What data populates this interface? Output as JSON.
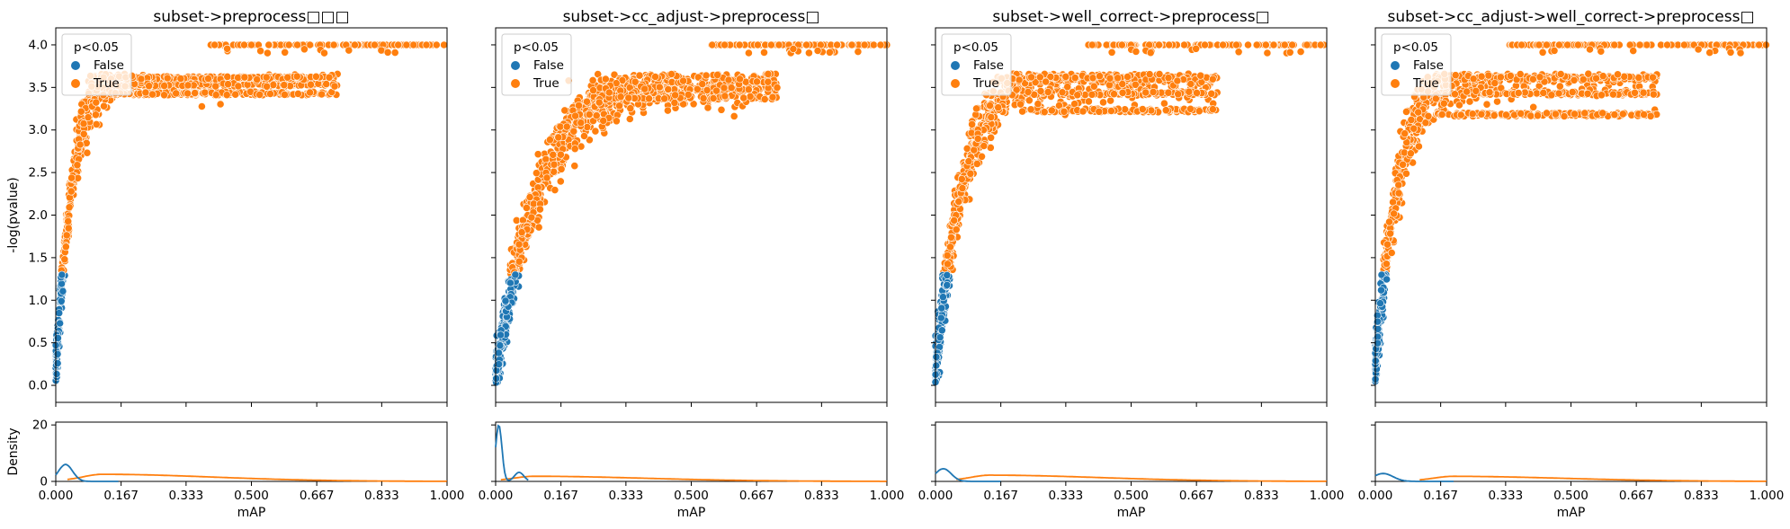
{
  "figure": {
    "legend_title": "p<0.05",
    "legend_entries": [
      {
        "label": "False",
        "color": "#1f77b4"
      },
      {
        "label": "True",
        "color": "#ff7f0e"
      }
    ]
  },
  "chart_data": [
    {
      "type": "scatter",
      "title": "subset->preprocess□□□",
      "ylabel": "-log(pvalue)",
      "xlabel": "mAP",
      "ylim": [
        -0.2,
        4.2
      ],
      "xlim": [
        0,
        1
      ],
      "yticks": [
        "0.0",
        "0.5",
        "1.0",
        "1.5",
        "2.0",
        "2.5",
        "3.0",
        "3.5",
        "4.0"
      ],
      "xticks": [
        "0.000",
        "0.167",
        "0.333",
        "0.500",
        "0.667",
        "0.833",
        "1.000"
      ],
      "threshold_y": 1.301,
      "curve": {
        "k": 20.0,
        "a": 3.7,
        "b": 0.25
      },
      "plateau": [
        3.63,
        3.55,
        3.45
      ],
      "cap_x_range": [
        0.38,
        1.0
      ],
      "density": {
        "ylabel": "Density",
        "ylim": [
          0,
          21
        ],
        "yticks": [
          "0",
          "20"
        ],
        "false_peak": {
          "x": 0.025,
          "y": 6.0,
          "w": 0.018
        },
        "true_peak": {
          "x": 0.12,
          "y": 2.3
        }
      }
    },
    {
      "type": "scatter",
      "title": "subset->cc_adjust->preprocess□",
      "ylabel": "",
      "xlabel": "mAP",
      "ylim": [
        -0.2,
        4.2
      ],
      "xlim": [
        0,
        1
      ],
      "yticks": [
        "0.0",
        "0.5",
        "1.0",
        "1.5",
        "2.0",
        "2.5",
        "3.0",
        "3.5",
        "4.0"
      ],
      "xticks": [
        "0.000",
        "0.167",
        "0.333",
        "0.500",
        "0.667",
        "0.833",
        "1.000"
      ],
      "threshold_y": 1.301,
      "curve": {
        "k": 9.0,
        "a": 3.6,
        "b": 0.05
      },
      "plateau": [
        3.5,
        3.4
      ],
      "cap_x_range": [
        0.55,
        1.0
      ],
      "density": {
        "ylabel": "",
        "ylim": [
          0,
          21
        ],
        "yticks": [
          "0",
          "20"
        ],
        "false_peak": {
          "x": 0.008,
          "y": 20.0,
          "w": 0.008
        },
        "true_peak": {
          "x": 0.1,
          "y": 1.6
        }
      }
    },
    {
      "type": "scatter",
      "title": "subset->well_correct->preprocess□",
      "ylabel": "",
      "xlabel": "mAP",
      "ylim": [
        -0.2,
        4.2
      ],
      "xlim": [
        0,
        1
      ],
      "yticks": [
        "0.0",
        "0.5",
        "1.0",
        "1.5",
        "2.0",
        "2.5",
        "3.0",
        "3.5",
        "4.0"
      ],
      "xticks": [
        "0.000",
        "0.167",
        "0.333",
        "0.500",
        "0.667",
        "0.833",
        "1.000"
      ],
      "threshold_y": 1.301,
      "curve": {
        "k": 14.0,
        "a": 3.6,
        "b": 0.1
      },
      "plateau": [
        3.63,
        3.45,
        3.25
      ],
      "cap_x_range": [
        0.38,
        1.0
      ],
      "density": {
        "ylabel": "",
        "ylim": [
          0,
          21
        ],
        "yticks": [
          "0",
          "20"
        ],
        "false_peak": {
          "x": 0.02,
          "y": 4.5,
          "w": 0.02
        },
        "true_peak": {
          "x": 0.14,
          "y": 2.0
        }
      }
    },
    {
      "type": "scatter",
      "title": "subset->cc_adjust->well_correct->preprocess□",
      "ylabel": "",
      "xlabel": "mAP",
      "ylim": [
        -0.2,
        4.2
      ],
      "xlim": [
        0,
        1
      ],
      "yticks": [
        "0.0",
        "0.5",
        "1.0",
        "1.5",
        "2.0",
        "2.5",
        "3.0",
        "3.5",
        "4.0"
      ],
      "xticks": [
        "0.000",
        "0.167",
        "0.333",
        "0.500",
        "0.667",
        "0.833",
        "1.000"
      ],
      "threshold_y": 1.301,
      "curve": {
        "k": 16.0,
        "a": 3.6,
        "b": 0.2
      },
      "plateau": [
        3.63,
        3.45,
        3.2
      ],
      "cap_x_range": [
        0.34,
        1.0
      ],
      "density": {
        "ylabel": "",
        "ylim": [
          0,
          21
        ],
        "yticks": [
          "0",
          "20"
        ],
        "false_peak": {
          "x": 0.02,
          "y": 2.8,
          "w": 0.025
        },
        "true_peak": {
          "x": 0.2,
          "y": 1.6
        }
      }
    }
  ]
}
